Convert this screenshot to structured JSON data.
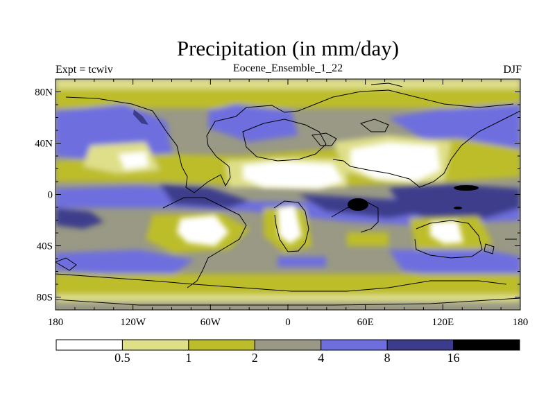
{
  "title": "Precipitation (in mm/day)",
  "experiment_label": "Expt = tcwiv",
  "ensemble_label": "Eocene_Ensemble_1_22",
  "season_label": "DJF",
  "colors": {
    "lt_0_5": "#ffffff",
    "0_5_to_1": "#dfdf8a",
    "1_to_2": "#bdbd2a",
    "2_to_4": "#999985",
    "4_to_8": "#6e6edf",
    "8_to_16": "#3c3c8c",
    "gt_16": "#000000"
  },
  "colorbar": {
    "labels": [
      "0.5",
      "1",
      "2",
      "4",
      "8",
      "16"
    ],
    "colors": [
      "#ffffff",
      "#dfdf8a",
      "#bdbd2a",
      "#999985",
      "#6e6edf",
      "#3c3c8c",
      "#000000"
    ]
  },
  "axes": {
    "x_ticks": [
      "180",
      "120W",
      "60W",
      "0",
      "60E",
      "120E",
      "180"
    ],
    "y_ticks": [
      "80N",
      "40N",
      "0",
      "40S",
      "80S"
    ],
    "lon_range": [
      -180,
      180
    ],
    "lat_range": [
      -90,
      90
    ]
  }
}
